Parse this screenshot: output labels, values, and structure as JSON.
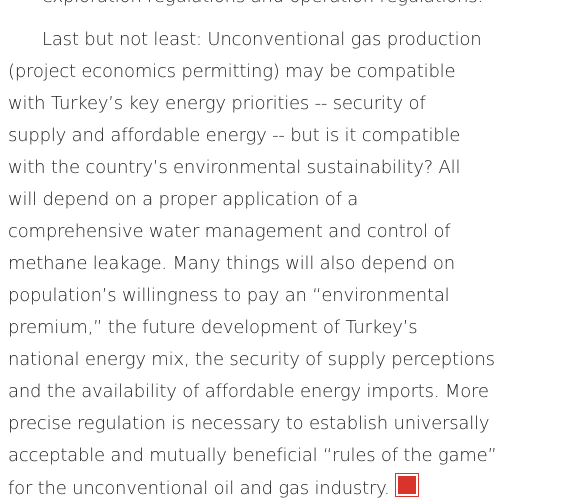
{
  "paragraph_end": "exploration regulations and operation regulations.",
  "paragraph": {
    "lines": [
      "Last but not least: Unconventional gas production",
      "(project economics permitting) may be compatible",
      "with Turkey’s key energy priorities -- security of",
      "supply and affordable energy -- but is it compatible",
      "with the country’s environmental sustainability? All",
      "will depend on a proper application of a",
      "comprehensive water management and control of",
      "methane leakage. Many things will also depend on",
      "population’s willingness to pay an “environmental",
      "premium,” the future development of Turkey’s",
      "national energy mix, the security of supply perceptions",
      "and the availability of affordable energy imports. More",
      "precise regulation is necessary to establish universally",
      "acceptable and mutually beneficial “rules of the game”",
      "for the unconventional oil and gas industry."
    ]
  }
}
